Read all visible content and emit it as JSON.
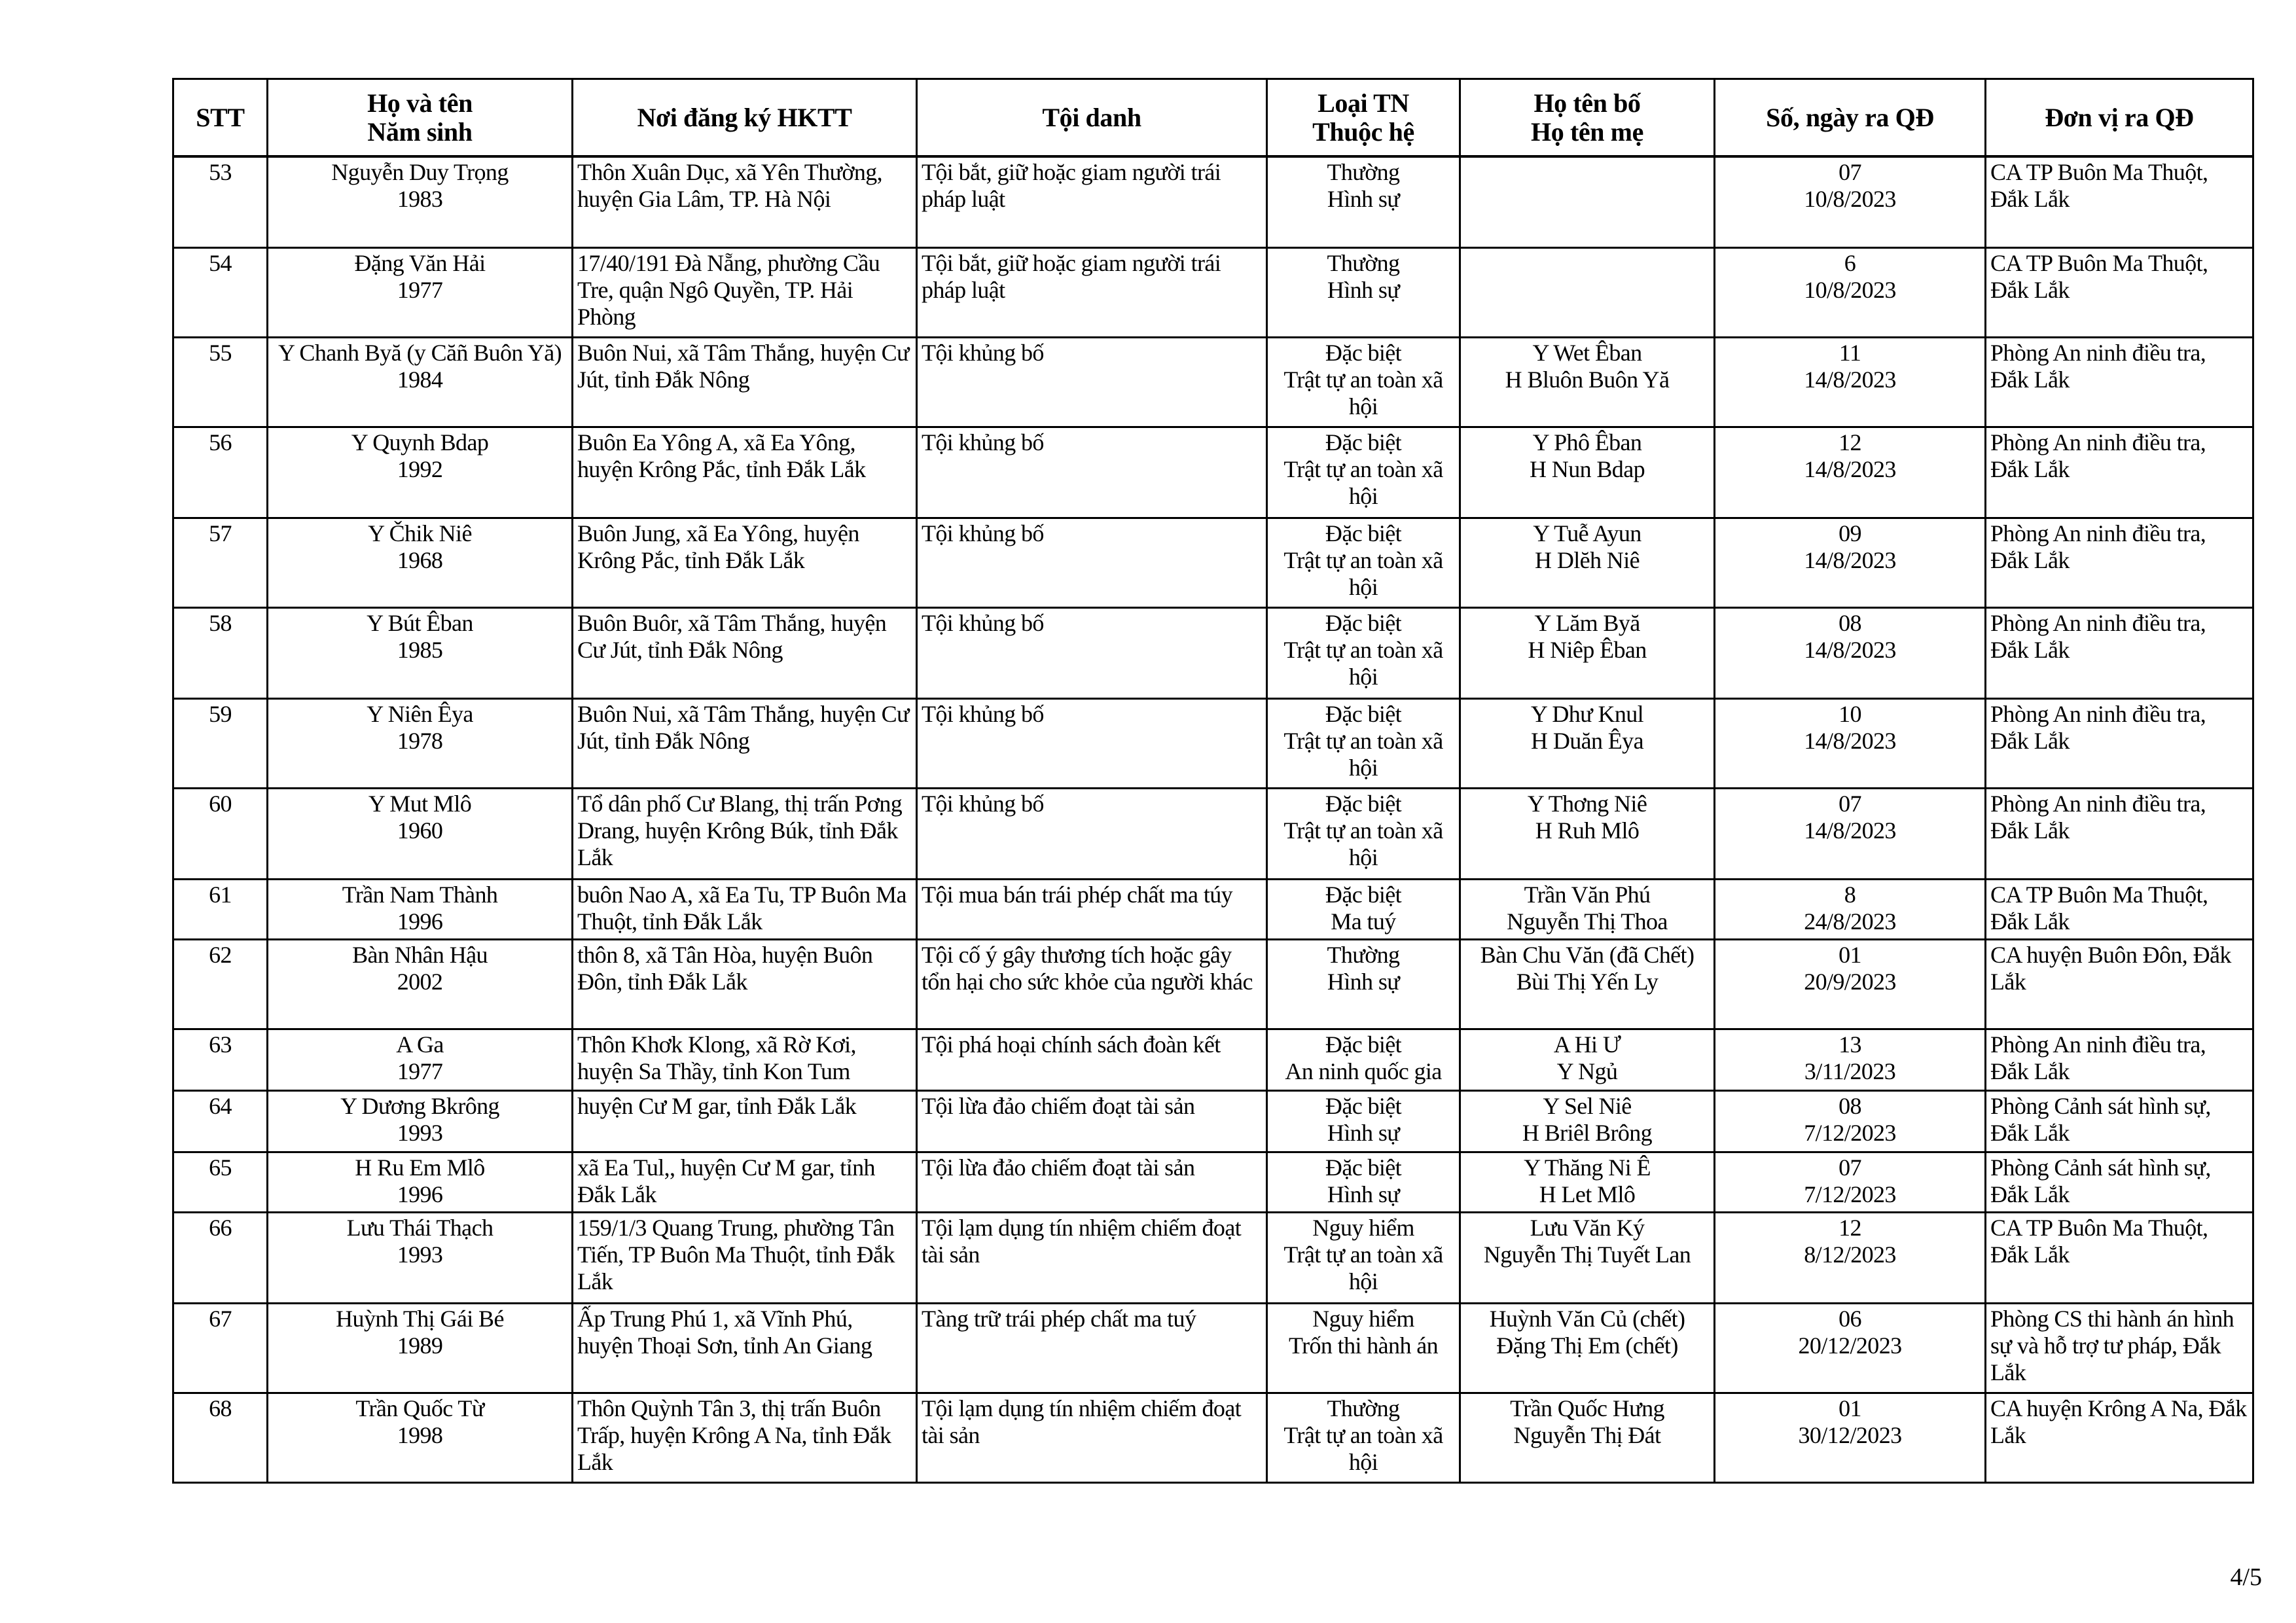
{
  "table": {
    "headers": [
      {
        "lines": [
          "STT"
        ]
      },
      {
        "lines": [
          "Họ và tên",
          "Năm sinh"
        ]
      },
      {
        "lines": [
          "Nơi đăng ký HKTT"
        ]
      },
      {
        "lines": [
          "Tội danh"
        ]
      },
      {
        "lines": [
          "Loại TN",
          "Thuộc hệ"
        ]
      },
      {
        "lines": [
          "Họ tên bố",
          "Họ tên mẹ"
        ]
      },
      {
        "lines": [
          "Số, ngày ra QĐ"
        ]
      },
      {
        "lines": [
          "Đơn vị ra QĐ"
        ]
      }
    ],
    "rows": [
      {
        "stt": "53",
        "name": "Nguyễn Duy Trọng",
        "year": "1983",
        "address": "Thôn Xuân Dục, xã Yên Thường, huyện Gia Lâm, TP. Hà Nội",
        "crime": "Tội bắt, giữ hoặc giam người trái pháp luật",
        "type": "Thường",
        "category": "Hình sự",
        "father": "",
        "mother": "",
        "number": "07",
        "date": "10/8/2023",
        "unit": "CA TP Buôn Ma Thuột, Đắk Lắk"
      },
      {
        "stt": "54",
        "name": "Đặng Văn Hải",
        "year": "1977",
        "address": "17/40/191 Đà Nẵng, phường Cầu Tre, quận Ngô Quyền, TP. Hải Phòng",
        "crime": "Tội bắt, giữ hoặc giam người trái pháp luật",
        "type": "Thường",
        "category": "Hình sự",
        "father": "",
        "mother": "",
        "number": "6",
        "date": "10/8/2023",
        "unit": "CA TP Buôn Ma Thuột, Đắk Lắk"
      },
      {
        "stt": "55",
        "name": "Y Chanh Byă (y Căñ Buôn Yă)",
        "year": "1984",
        "address": "Buôn Nui, xã Tâm Thắng, huyện Cư Jút, tỉnh Đắk Nông",
        "crime": "Tội khủng bố",
        "type": "Đặc biệt",
        "category": "Trật tự an toàn xã hội",
        "father": "Y Wet Êban",
        "mother": "H Bluôn Buôn Yă",
        "number": "11",
        "date": "14/8/2023",
        "unit": "Phòng An ninh điều tra, Đắk Lắk"
      },
      {
        "stt": "56",
        "name": "Y Quynh Bdap",
        "year": "1992",
        "address": "Buôn Ea Yông A, xã Ea Yông, huyện Krông Pắc, tỉnh Đắk Lắk",
        "crime": "Tội khủng bố",
        "type": "Đặc biệt",
        "category": "Trật tự an toàn xã hội",
        "father": "Y Phô Êban",
        "mother": "H Nun Bdap",
        "number": "12",
        "date": "14/8/2023",
        "unit": "Phòng An ninh điều tra, Đắk Lắk"
      },
      {
        "stt": "57",
        "name": "Y Čhik Niê",
        "year": "1968",
        "address": "Buôn Jung, xã Ea Yông, huyện Krông Pắc, tỉnh Đắk Lắk",
        "crime": "Tội khủng bố",
        "type": "Đặc biệt",
        "category": "Trật tự an toàn xã hội",
        "father": "Y Tuễ Ayun",
        "mother": "H Dlĕh Niê",
        "number": "09",
        "date": "14/8/2023",
        "unit": "Phòng An ninh điều tra, Đắk Lắk"
      },
      {
        "stt": "58",
        "name": "Y Bút Êban",
        "year": "1985",
        "address": "Buôn Buôr, xã Tâm Thắng, huyện Cư Jút, tỉnh Đắk Nông",
        "crime": "Tội khủng bố",
        "type": "Đặc biệt",
        "category": "Trật tự an toàn xã hội",
        "father": "Y Lăm Byă",
        "mother": "H Niêp Êban",
        "number": "08",
        "date": "14/8/2023",
        "unit": "Phòng An ninh điều tra, Đắk Lắk"
      },
      {
        "stt": "59",
        "name": "Y Niên Êya",
        "year": "1978",
        "address": "Buôn Nui, xã Tâm Thắng, huyện Cư Jút, tỉnh Đắk Nông",
        "crime": "Tội khủng bố",
        "type": "Đặc biệt",
        "category": "Trật tự an toàn xã hội",
        "father": "Y Dhư Knul",
        "mother": "H Duăn Êya",
        "number": "10",
        "date": "14/8/2023",
        "unit": "Phòng An ninh điều tra, Đắk Lắk"
      },
      {
        "stt": "60",
        "name": "Y Mut Mlô",
        "year": "1960",
        "address": "Tổ dân phố Cư Blang, thị trấn Pơng Drang, huyện Krông Búk, tỉnh Đắk Lắk",
        "crime": "Tội khủng bố",
        "type": "Đặc biệt",
        "category": "Trật tự an toàn xã hội",
        "father": "Y Thơng Niê",
        "mother": "H Ruh Mlô",
        "number": "07",
        "date": "14/8/2023",
        "unit": "Phòng An ninh điều tra, Đắk Lắk"
      },
      {
        "stt": "61",
        "name": "Trần Nam Thành",
        "year": "1996",
        "address": "buôn Nao A, xã Ea Tu, TP Buôn Ma Thuột, tỉnh Đắk Lắk",
        "crime": "Tội mua bán trái phép chất ma túy",
        "type": "Đặc biệt",
        "category": "Ma tuý",
        "father": "Trần Văn Phú",
        "mother": "Nguyễn Thị Thoa",
        "number": "8",
        "date": "24/8/2023",
        "unit": "CA TP Buôn Ma Thuột, Đắk Lắk"
      },
      {
        "stt": "62",
        "name": "Bàn Nhân Hậu",
        "year": "2002",
        "address": "thôn 8, xã Tân Hòa, huyện Buôn Đôn, tỉnh Đắk Lắk",
        "crime": "Tội cố ý gây thương tích hoặc gây tổn hại cho sức khỏe của người khác",
        "type": "Thường",
        "category": "Hình sự",
        "father": "Bàn Chu Văn (đã Chết)",
        "mother": "Bùi Thị Yến Ly",
        "number": "01",
        "date": "20/9/2023",
        "unit": "CA huyện Buôn Đôn, Đắk Lắk"
      },
      {
        "stt": "63",
        "name": "A Ga",
        "year": "1977",
        "address": "Thôn Khơk Klong, xã Rờ Kơi, huyện Sa Thầy, tỉnh Kon Tum",
        "crime": "Tội phá hoại chính sách đoàn kết",
        "type": "Đặc biệt",
        "category": "An ninh quốc gia",
        "father": "A Hi Ư",
        "mother": "Y Ngủ",
        "number": "13",
        "date": "3/11/2023",
        "unit": "Phòng An ninh điều tra, Đắk Lắk"
      },
      {
        "stt": "64",
        "name": "Y Dương Bkrông",
        "year": "1993",
        "address": "huyện Cư M gar, tỉnh Đắk Lắk",
        "crime": "Tội lừa đảo chiếm đoạt tài sản",
        "type": "Đặc biệt",
        "category": "Hình sự",
        "father": "Y Sel Niê",
        "mother": "H Briêl Brông",
        "number": "08",
        "date": "7/12/2023",
        "unit": "Phòng Cảnh sát hình sự, Đắk Lắk"
      },
      {
        "stt": "65",
        "name": "H Ru Em Mlô",
        "year": "1996",
        "address": "xã Ea Tul,, huyện Cư M gar, tỉnh Đắk Lắk",
        "crime": "Tội lừa đảo chiếm đoạt tài sản",
        "type": "Đặc biệt",
        "category": "Hình sự",
        "father": "Y Thăng Ni Ê",
        "mother": "H Let Mlô",
        "number": "07",
        "date": "7/12/2023",
        "unit": "Phòng Cảnh sát hình sự, Đắk Lắk"
      },
      {
        "stt": "66",
        "name": "Lưu Thái Thạch",
        "year": "1993",
        "address": "159/1/3 Quang Trung, phường Tân Tiến, TP Buôn Ma Thuột, tỉnh Đắk Lắk",
        "crime": "Tội lạm dụng tín nhiệm chiếm đoạt tài sản",
        "type": "Nguy hiểm",
        "category": "Trật tự an toàn xã hội",
        "father": "Lưu Văn Ký",
        "mother": "Nguyễn Thị Tuyết Lan",
        "number": "12",
        "date": "8/12/2023",
        "unit": "CA TP Buôn Ma Thuột, Đắk Lắk"
      },
      {
        "stt": "67",
        "name": "Huỳnh Thị Gái Bé",
        "year": "1989",
        "address": "Ấp Trung Phú 1, xã Vĩnh Phú, huyện Thoại Sơn, tỉnh An Giang",
        "crime": "Tàng trữ trái phép chất ma tuý",
        "type": "Nguy hiểm",
        "category": "Trốn thi hành án",
        "father": "Huỳnh Văn Củ (chết)",
        "mother": "Đặng Thị Em (chết)",
        "number": "06",
        "date": "20/12/2023",
        "unit": "Phòng CS thi hành án hình sự và hỗ trợ tư pháp, Đắk Lắk"
      },
      {
        "stt": "68",
        "name": "Trần Quốc Từ",
        "year": "1998",
        "address": "Thôn Quỳnh Tân 3, thị trấn Buôn Trấp, huyện Krông A Na, tỉnh Đắk Lắk",
        "crime": "Tội lạm dụng tín nhiệm chiếm đoạt tài sản",
        "type": "Thường",
        "category": "Trật tự an toàn xã hội",
        "father": "Trần Quốc Hưng",
        "mother": "Nguyễn Thị Đát",
        "number": "01",
        "date": "30/12/2023",
        "unit": "CA huyện Krông A Na, Đắk Lắk"
      }
    ]
  },
  "page_number": "4/5"
}
